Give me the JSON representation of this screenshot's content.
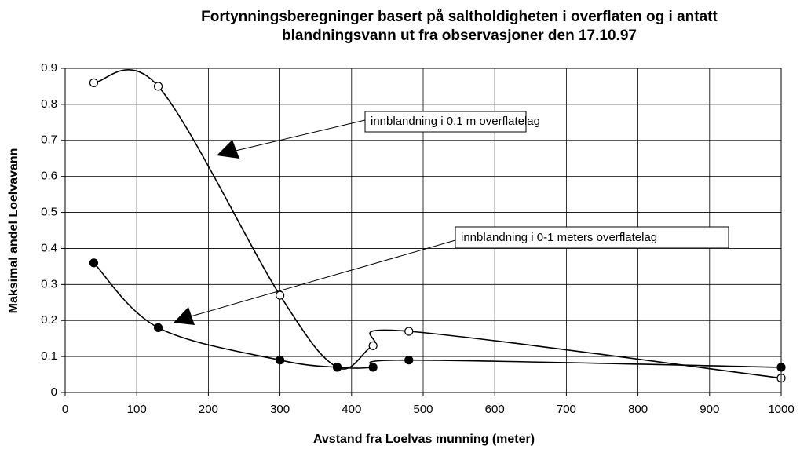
{
  "chart_data": {
    "type": "line",
    "title": [
      "Fortynningsberegninger basert på saltholdigheten i overflaten og i antatt",
      "blandningsvann ut fra observasjoner den 17.10.97"
    ],
    "xlabel": "Avstand fra Loelvas munning (meter)",
    "ylabel": "Maksimal andel Loelvavann",
    "x": [
      40,
      130,
      300,
      380,
      430,
      480,
      1000
    ],
    "series": [
      {
        "name": "innblandning i 0.1 m overflatelag",
        "color": "#000000",
        "marker": "open",
        "values": [
          0.86,
          0.85,
          0.27,
          0.07,
          0.13,
          0.17,
          0.04
        ]
      },
      {
        "name": "innblandning i 0-1 meters overflatelag",
        "color": "#000000",
        "marker": "filled",
        "values": [
          0.36,
          0.18,
          0.09,
          0.07,
          0.07,
          0.09,
          0.07
        ]
      }
    ],
    "xlim": [
      0,
      1000
    ],
    "xticks": [
      0,
      100,
      200,
      300,
      400,
      500,
      600,
      700,
      800,
      900,
      1000
    ],
    "ylim": [
      0,
      0.9
    ],
    "yticks": [
      0,
      0.1,
      0.2,
      0.3,
      0.4,
      0.5,
      0.6,
      0.7,
      0.8,
      0.9
    ],
    "grid": true
  }
}
